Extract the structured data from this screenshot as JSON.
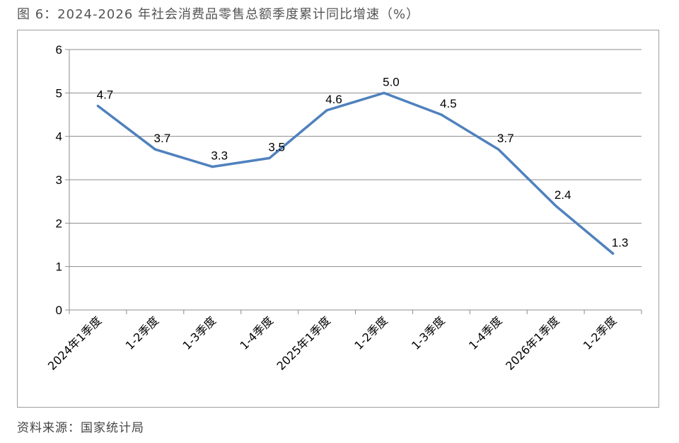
{
  "title": "图 6：2024-2026 年社会消费品零售总额季度累计同比增速（%）",
  "source": "资料来源：国家统计局",
  "chart_data": {
    "type": "line",
    "title": "图 6：2024-2026 年社会消费品零售总额季度累计同比增速（%）",
    "categories": [
      "2024年1季度",
      "1-2季度",
      "1-3季度",
      "1-4季度",
      "2025年1季度",
      "1-2季度",
      "1-3季度",
      "1-4季度",
      "2026年1季度",
      "1-2季度"
    ],
    "series": [
      {
        "values": [
          4.7,
          3.7,
          3.3,
          3.5,
          4.6,
          5.0,
          4.5,
          3.7,
          2.4,
          1.3
        ],
        "color": "#4f81bd"
      }
    ],
    "data_labels": [
      "4.7",
      "3.7",
      "3.3",
      "3.5",
      "4.6",
      "5.0",
      "4.5",
      "3.7",
      "2.4",
      "1.3"
    ],
    "ylim": [
      0,
      6
    ],
    "yticks": [
      "0",
      "1",
      "2",
      "3",
      "4",
      "5",
      "6"
    ],
    "xlabel": "",
    "ylabel": "",
    "grid": true,
    "legend": "none"
  }
}
